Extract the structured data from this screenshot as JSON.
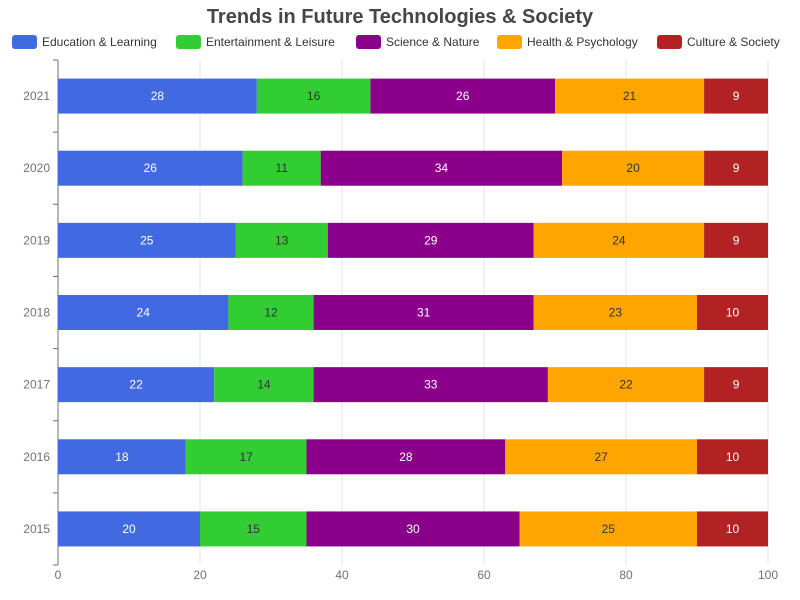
{
  "chart_data": {
    "type": "bar",
    "orientation": "horizontal",
    "stacked": true,
    "title": "Trends in Future Technologies & Society",
    "xlabel": "",
    "ylabel": "",
    "xlim": [
      0,
      100
    ],
    "x_ticks": [
      "0",
      "20",
      "40",
      "60",
      "80",
      "100"
    ],
    "categories": [
      "2015",
      "2016",
      "2017",
      "2018",
      "2019",
      "2020",
      "2021"
    ],
    "series": [
      {
        "name": "Education & Learning",
        "color": "#4169e1",
        "label_color": "light",
        "values": [
          20,
          18,
          22,
          24,
          25,
          26,
          28
        ]
      },
      {
        "name": "Entertainment & Leisure",
        "color": "#32cd32",
        "label_color": "dark",
        "values": [
          15,
          17,
          14,
          12,
          13,
          11,
          16
        ]
      },
      {
        "name": "Science & Nature",
        "color": "#8b008b",
        "label_color": "light",
        "values": [
          30,
          28,
          33,
          31,
          29,
          34,
          26
        ]
      },
      {
        "name": "Health & Psychology",
        "color": "#ffa500",
        "label_color": "dark",
        "values": [
          25,
          27,
          22,
          23,
          24,
          20,
          21
        ]
      },
      {
        "name": "Culture & Society",
        "color": "#b22222",
        "label_color": "light",
        "values": [
          10,
          10,
          9,
          10,
          9,
          9,
          9
        ]
      }
    ],
    "grid": true,
    "legend_position": "top"
  }
}
